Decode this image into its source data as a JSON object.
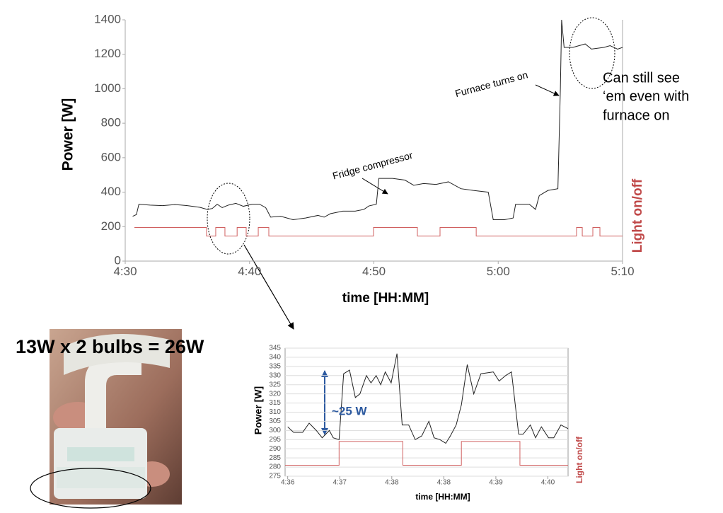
{
  "caption": "13W x 2 bulbs = 26W",
  "chart_data": [
    {
      "type": "line",
      "xlabel": "time [HH:MM]",
      "ylabel": "Power [W]",
      "y2label": "Light on/off",
      "xlim": [
        270,
        310
      ],
      "ylim": [
        0,
        1400
      ],
      "y2lim": [
        -2.9,
        25.1
      ],
      "xticks": [
        {
          "value": 270,
          "label": "4:30"
        },
        {
          "value": 280,
          "label": "4:40"
        },
        {
          "value": 290,
          "label": "4:50"
        },
        {
          "value": 300,
          "label": "5:00"
        },
        {
          "value": 310,
          "label": "5:10"
        }
      ],
      "yticks": [
        0,
        200,
        400,
        600,
        800,
        1000,
        1200,
        1400
      ],
      "grid": false,
      "annotations": [
        "Fridge compressor",
        "Furnace turns on",
        "Can still see",
        "‘em even with",
        "furnace on"
      ],
      "series": [
        {
          "name": "Power",
          "color": "#222222",
          "x": [
            270.6,
            270.9,
            271.1,
            272,
            273,
            274,
            275,
            276,
            276.6,
            277,
            277.4,
            277.8,
            278.3,
            278.9,
            279.5,
            280.2,
            280.8,
            281.3,
            281.7,
            282.5,
            283.5,
            284.5,
            285.5,
            286,
            286.5,
            287.5,
            288.5,
            289.2,
            289.6,
            290.2,
            290.4,
            291.5,
            292.5,
            293.2,
            294,
            295,
            296,
            297,
            298,
            299.2,
            299.6,
            300.5,
            301.2,
            301.4,
            302.5,
            303,
            303.3,
            304,
            304.8,
            305.0,
            305.1,
            305.3,
            306,
            307,
            307.5,
            308.5,
            309,
            309.6,
            310
          ],
          "values": [
            260,
            270,
            330,
            325,
            322,
            328,
            322,
            312,
            300,
            305,
            330,
            310,
            325,
            335,
            318,
            330,
            330,
            310,
            255,
            260,
            240,
            250,
            265,
            255,
            275,
            290,
            290,
            300,
            320,
            330,
            480,
            480,
            470,
            440,
            450,
            445,
            460,
            420,
            410,
            400,
            240,
            240,
            250,
            330,
            330,
            300,
            380,
            410,
            420,
            1000,
            1400,
            1240,
            1240,
            1260,
            1230,
            1240,
            1250,
            1230,
            1240
          ]
        },
        {
          "name": "Light",
          "color": "#d06060",
          "axis": "y2",
          "x": [
            270.74,
            276.54,
            276.54,
            277.28,
            277.28,
            278.02,
            278.02,
            279.0,
            279.0,
            279.73,
            279.73,
            280.7,
            280.7,
            281.55,
            281.55,
            289.97,
            289.97,
            293.5,
            293.5,
            295.32,
            295.32,
            298.23,
            298.23,
            306.3,
            306.3,
            306.76,
            306.76,
            307.61,
            307.61,
            308.18,
            308.18,
            310
          ],
          "values": [
            1,
            1,
            0,
            0,
            1,
            1,
            0,
            0,
            1,
            1,
            0,
            0,
            1,
            1,
            0,
            0,
            1,
            1,
            0,
            0,
            1,
            1,
            0,
            0,
            1,
            1,
            0,
            0,
            1,
            1,
            0,
            0
          ]
        }
      ]
    },
    {
      "type": "line",
      "xlabel": "time [HH:MM]",
      "ylabel": "Power [W]",
      "y2label": "Light on/off",
      "xlim": [
        275.96,
        280.31
      ],
      "ylim": [
        275,
        345
      ],
      "y2lim": [
        -0.4615,
        4.923
      ],
      "xticks": [
        {
          "value": 276,
          "label": "4:36"
        },
        {
          "value": 276.8,
          "label": "4:37"
        },
        {
          "value": 277.6,
          "label": "4:38"
        },
        {
          "value": 278.4,
          "label": "4:38"
        },
        {
          "value": 279.2,
          "label": "4:39"
        },
        {
          "value": 280,
          "label": "4:40"
        }
      ],
      "yticks": [
        275,
        280,
        285,
        290,
        295,
        300,
        305,
        310,
        315,
        320,
        325,
        330,
        335,
        340,
        345
      ],
      "grid": true,
      "annotations": [
        "~25 W"
      ],
      "series": [
        {
          "name": "Power",
          "color": "#222222",
          "x": [
            276.0,
            276.09,
            276.23,
            276.33,
            276.44,
            276.53,
            276.64,
            276.7,
            276.79,
            276.86,
            276.95,
            277.04,
            277.11,
            277.21,
            277.28,
            277.36,
            277.43,
            277.5,
            277.59,
            277.68,
            277.76,
            277.86,
            277.96,
            278.06,
            278.17,
            278.25,
            278.34,
            278.43,
            278.5,
            278.59,
            278.67,
            278.76,
            278.86,
            278.97,
            279.16,
            279.25,
            279.35,
            279.44,
            279.55,
            279.62,
            279.73,
            279.81,
            279.9,
            280.01,
            280.09,
            280.2,
            280.31
          ],
          "values": [
            302,
            299,
            299,
            304,
            300,
            296,
            300,
            296,
            295,
            331,
            333,
            318,
            320,
            330,
            326,
            330,
            325,
            332,
            326,
            342,
            303,
            303,
            295,
            297,
            305,
            296,
            295,
            293,
            297,
            303,
            314,
            336,
            320,
            331,
            332,
            327,
            330,
            332,
            298,
            298,
            303,
            296,
            302,
            296,
            296,
            303,
            301
          ]
        },
        {
          "name": "Light",
          "color": "#d06060",
          "axis": "y2",
          "x": [
            275.96,
            276.79,
            276.79,
            277.77,
            277.77,
            278.67,
            278.67,
            279.57,
            279.57,
            280.31
          ],
          "values": [
            0,
            0,
            1,
            1,
            0,
            0,
            1,
            1,
            0,
            0
          ]
        }
      ]
    }
  ]
}
